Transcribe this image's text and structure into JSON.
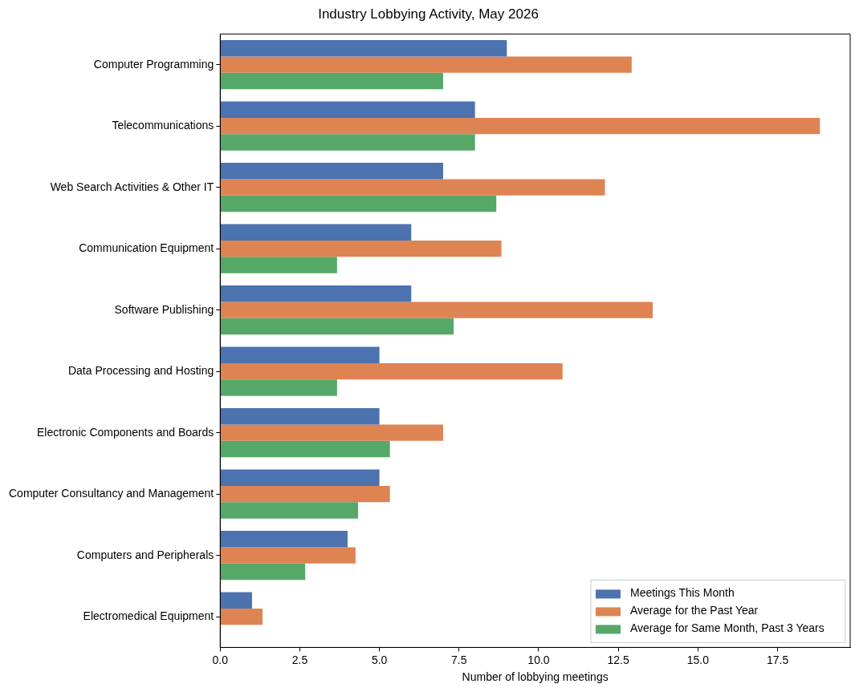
{
  "chart_data": {
    "type": "bar",
    "orientation": "horizontal",
    "title": "Industry Lobbying Activity, May 2026",
    "xlabel": "Number of lobbying meetings",
    "categories": [
      "Computer Programming",
      "Telecommunications",
      "Web Search Activities & Other IT",
      "Communication Equipment",
      "Software Publishing",
      "Data Processing and Hosting",
      "Electronic Components and Boards",
      "Computer Consultancy and Management",
      "Computers and Peripherals",
      "Electromedical Equipment"
    ],
    "series": [
      {
        "name": "Meetings This Month",
        "color": "#4c72b0",
        "values": [
          9,
          8,
          7,
          6,
          6,
          5,
          5,
          5,
          4,
          1
        ]
      },
      {
        "name": "Average for the Past Year",
        "color": "#dd8452",
        "values": [
          12.92,
          18.83,
          12.08,
          8.83,
          13.58,
          10.75,
          7.0,
          5.33,
          4.25,
          1.33
        ]
      },
      {
        "name": "Average for Same Month, Past 3 Years",
        "color": "#55a868",
        "values": [
          7.0,
          8.0,
          8.67,
          3.67,
          7.33,
          3.67,
          5.33,
          4.33,
          2.67,
          0
        ]
      }
    ],
    "xlim": [
      0,
      19.78
    ],
    "xticks": [
      {
        "value": 0,
        "label": "0.0"
      },
      {
        "value": 2.5,
        "label": "2.5"
      },
      {
        "value": 5,
        "label": "5.0"
      },
      {
        "value": 7.5,
        "label": "7.5"
      },
      {
        "value": 10,
        "label": "10.0"
      },
      {
        "value": 12.5,
        "label": "12.5"
      },
      {
        "value": 15,
        "label": "15.0"
      },
      {
        "value": 17.5,
        "label": "17.5"
      }
    ],
    "grid": false,
    "legend": "bottom right"
  }
}
